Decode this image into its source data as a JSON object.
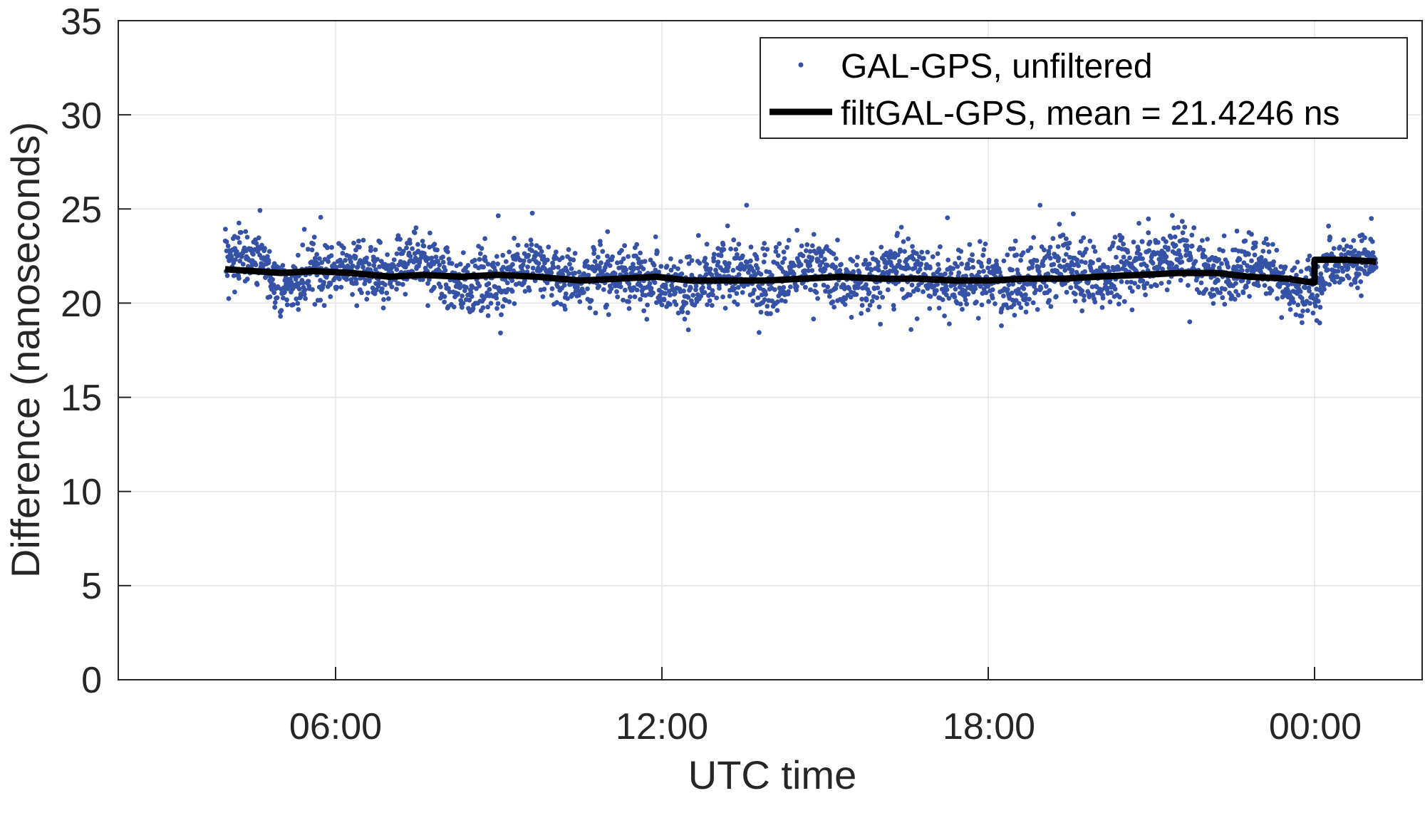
{
  "chart_data": {
    "type": "scatter",
    "title": "",
    "xlabel": "UTC time",
    "ylabel": "Difference (nanoseconds)",
    "ylim": [
      0,
      35
    ],
    "yticks": [
      0,
      5,
      10,
      15,
      20,
      25,
      30,
      35
    ],
    "xlim_hours": [
      -2.1,
      26.0
    ],
    "xticks": [
      {
        "hour": 6,
        "label": "06:00"
      },
      {
        "hour": 12,
        "label": "12:00"
      },
      {
        "hour": 18,
        "label": "18:00"
      },
      {
        "hour": 24,
        "label": "00:00"
      }
    ],
    "grid": true,
    "legend_position": "upper right",
    "legend": [
      {
        "label": "GAL-GPS, unfiltered",
        "marker": "dot",
        "color": "#3552a6"
      },
      {
        "label": "filtGAL-GPS, mean = 21.4246 ns",
        "marker": "line",
        "color": "#000000"
      }
    ],
    "series": [
      {
        "name": "GAL-GPS, unfiltered",
        "style": "scatter",
        "color": "#3552a6",
        "x_hours_range": [
          3.97,
          25.13
        ],
        "local_means": [
          {
            "h": 3.97,
            "mean": 22.6,
            "spread": 0.9
          },
          {
            "h": 4.6,
            "mean": 22.4,
            "spread": 1.0
          },
          {
            "h": 5.0,
            "mean": 20.7,
            "spread": 0.8
          },
          {
            "h": 5.6,
            "mean": 21.6,
            "spread": 1.0
          },
          {
            "h": 6.3,
            "mean": 22.0,
            "spread": 0.9
          },
          {
            "h": 7.0,
            "mean": 21.2,
            "spread": 1.1
          },
          {
            "h": 7.5,
            "mean": 22.6,
            "spread": 1.0
          },
          {
            "h": 8.2,
            "mean": 21.0,
            "spread": 1.1
          },
          {
            "h": 9.0,
            "mean": 21.2,
            "spread": 1.2
          },
          {
            "h": 9.6,
            "mean": 22.0,
            "spread": 1.0
          },
          {
            "h": 10.3,
            "mean": 21.3,
            "spread": 1.1
          },
          {
            "h": 11.0,
            "mean": 21.5,
            "spread": 1.1
          },
          {
            "h": 11.8,
            "mean": 21.4,
            "spread": 1.0
          },
          {
            "h": 12.6,
            "mean": 20.8,
            "spread": 1.1
          },
          {
            "h": 13.2,
            "mean": 21.7,
            "spread": 1.1
          },
          {
            "h": 14.0,
            "mean": 21.0,
            "spread": 1.2
          },
          {
            "h": 14.8,
            "mean": 22.0,
            "spread": 1.0
          },
          {
            "h": 15.5,
            "mean": 20.9,
            "spread": 1.0
          },
          {
            "h": 16.3,
            "mean": 22.1,
            "spread": 1.1
          },
          {
            "h": 17.0,
            "mean": 21.2,
            "spread": 1.1
          },
          {
            "h": 17.8,
            "mean": 21.3,
            "spread": 1.2
          },
          {
            "h": 18.6,
            "mean": 21.0,
            "spread": 1.1
          },
          {
            "h": 19.3,
            "mean": 22.0,
            "spread": 1.1
          },
          {
            "h": 20.0,
            "mean": 21.3,
            "spread": 1.2
          },
          {
            "h": 20.8,
            "mean": 22.2,
            "spread": 1.1
          },
          {
            "h": 21.6,
            "mean": 22.6,
            "spread": 1.2
          },
          {
            "h": 22.3,
            "mean": 21.2,
            "spread": 1.0
          },
          {
            "h": 23.0,
            "mean": 22.4,
            "spread": 1.1
          },
          {
            "h": 23.6,
            "mean": 20.6,
            "spread": 1.0
          },
          {
            "h": 24.0,
            "mean": 20.8,
            "spread": 1.1
          },
          {
            "h": 24.3,
            "mean": 22.3,
            "spread": 0.9
          },
          {
            "h": 25.13,
            "mean": 22.3,
            "spread": 0.9
          }
        ],
        "approx_range": [
          17.6,
          25.2
        ]
      },
      {
        "name": "filtGAL-GPS",
        "style": "line",
        "color": "#000000",
        "mean": 21.4246,
        "points": [
          {
            "h": 3.97,
            "y": 21.8
          },
          {
            "h": 4.5,
            "y": 21.7
          },
          {
            "h": 5.0,
            "y": 21.6
          },
          {
            "h": 5.6,
            "y": 21.7
          },
          {
            "h": 6.3,
            "y": 21.6
          },
          {
            "h": 7.0,
            "y": 21.4
          },
          {
            "h": 7.6,
            "y": 21.5
          },
          {
            "h": 8.3,
            "y": 21.4
          },
          {
            "h": 9.0,
            "y": 21.5
          },
          {
            "h": 9.7,
            "y": 21.4
          },
          {
            "h": 10.5,
            "y": 21.2
          },
          {
            "h": 11.2,
            "y": 21.3
          },
          {
            "h": 11.9,
            "y": 21.4
          },
          {
            "h": 12.5,
            "y": 21.2
          },
          {
            "h": 13.2,
            "y": 21.2
          },
          {
            "h": 13.9,
            "y": 21.2
          },
          {
            "h": 14.6,
            "y": 21.3
          },
          {
            "h": 15.3,
            "y": 21.4
          },
          {
            "h": 16.0,
            "y": 21.3
          },
          {
            "h": 16.7,
            "y": 21.3
          },
          {
            "h": 17.4,
            "y": 21.2
          },
          {
            "h": 18.0,
            "y": 21.2
          },
          {
            "h": 18.7,
            "y": 21.3
          },
          {
            "h": 19.4,
            "y": 21.3
          },
          {
            "h": 20.0,
            "y": 21.4
          },
          {
            "h": 20.8,
            "y": 21.5
          },
          {
            "h": 21.5,
            "y": 21.6
          },
          {
            "h": 22.2,
            "y": 21.6
          },
          {
            "h": 22.8,
            "y": 21.4
          },
          {
            "h": 23.5,
            "y": 21.3
          },
          {
            "h": 23.95,
            "y": 21.1
          },
          {
            "h": 24.0,
            "y": 22.3
          },
          {
            "h": 24.6,
            "y": 22.3
          },
          {
            "h": 25.13,
            "y": 22.2
          }
        ]
      }
    ]
  },
  "axes": {
    "xlabel": "UTC time",
    "ylabel": "Difference (nanoseconds)",
    "ytick_labels": [
      "0",
      "5",
      "10",
      "15",
      "20",
      "25",
      "30",
      "35"
    ],
    "xtick_labels": [
      "06:00",
      "12:00",
      "18:00",
      "00:00"
    ]
  },
  "legend": {
    "item1_label": "GAL-GPS, unfiltered",
    "item2_label": "filtGAL-GPS, mean = 21.4246 ns"
  },
  "colors": {
    "scatter": "#3552a6",
    "filtered": "#000000",
    "grid": "#e3e3e3",
    "axis": "#262626"
  }
}
